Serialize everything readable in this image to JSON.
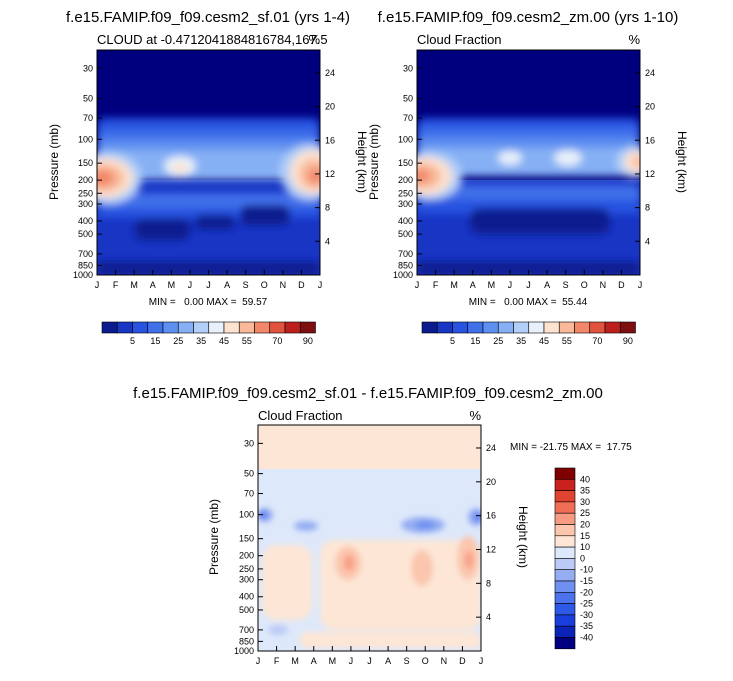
{
  "colors": {
    "background": "#ffffff",
    "deep_blue": "#00007f",
    "palette12": [
      "#0b1a8f",
      "#1835c4",
      "#2753e0",
      "#3f70ea",
      "#5f8ff0",
      "#86b0f4",
      "#b3cff7",
      "#e7f0fb",
      "#fde2cf",
      "#f9b899",
      "#f2876a",
      "#e2533f",
      "#bd1f1d",
      "#7f0e11"
    ],
    "diff_palette": [
      "#000080",
      "#0c23b8",
      "#1a3edc",
      "#2e58e6",
      "#4d73ec",
      "#6f90f0",
      "#94adf3",
      "#bccbf6",
      "#dde8fa",
      "#fde6d6",
      "#fbc6ad",
      "#f79c82",
      "#ef6f56",
      "#e0432f",
      "#c8211e",
      "#7f0000"
    ]
  },
  "chart_data": [
    {
      "type": "heatmap",
      "title": "f.e15.FAMIP.f09_f09.cesm2_sf.01 (yrs 1-4)",
      "left_label": "CLOUD at -0.4712041884816784,167.5",
      "right_label": "%",
      "ylabel": "Pressure (mb)",
      "ylabel2": "Height (km)",
      "months": [
        "J",
        "F",
        "M",
        "A",
        "M",
        "J",
        "J",
        "A",
        "S",
        "O",
        "N",
        "D",
        "J"
      ],
      "pressure_ticks": [
        "30",
        "50",
        "70",
        "100",
        "150",
        "200",
        "250",
        "300",
        "400",
        "500",
        "700",
        "850",
        "1000"
      ],
      "height_ticks": [
        "24",
        "20",
        "16",
        "12",
        "8",
        "4"
      ],
      "stats_text": "MIN =   0.00 MAX =  59.57",
      "colorbar": {
        "labels": [
          "5",
          "15",
          "25",
          "35",
          "45",
          "55",
          "70",
          "90"
        ]
      }
    },
    {
      "type": "heatmap",
      "title": "f.e15.FAMIP.f09_f09.cesm2_zm.00 (yrs 1-10)",
      "left_label": "Cloud Fraction",
      "right_label": "%",
      "ylabel": "Pressure (mb)",
      "ylabel2": "Height (km)",
      "months": [
        "J",
        "F",
        "M",
        "A",
        "M",
        "J",
        "J",
        "A",
        "S",
        "O",
        "N",
        "D",
        "J"
      ],
      "pressure_ticks": [
        "30",
        "50",
        "70",
        "100",
        "150",
        "200",
        "250",
        "300",
        "400",
        "500",
        "700",
        "850",
        "1000"
      ],
      "height_ticks": [
        "24",
        "20",
        "16",
        "12",
        "8",
        "4"
      ],
      "stats_text": "MIN =   0.00 MAX =  55.44",
      "colorbar": {
        "labels": [
          "5",
          "15",
          "25",
          "35",
          "45",
          "55",
          "70",
          "90"
        ]
      }
    },
    {
      "type": "heatmap",
      "title": "f.e15.FAMIP.f09_f09.cesm2_sf.01 - f.e15.FAMIP.f09_f09.cesm2_zm.00",
      "left_label": "Cloud Fraction",
      "right_label": "%",
      "ylabel": "Pressure (mb)",
      "ylabel2": "Height (km)",
      "months": [
        "J",
        "F",
        "M",
        "A",
        "M",
        "J",
        "J",
        "A",
        "S",
        "O",
        "N",
        "D",
        "J"
      ],
      "pressure_ticks": [
        "30",
        "50",
        "70",
        "100",
        "150",
        "200",
        "250",
        "300",
        "400",
        "500",
        "700",
        "850",
        "1000"
      ],
      "height_ticks": [
        "24",
        "20",
        "16",
        "12",
        "8",
        "4"
      ],
      "stats_text": "MIN = -21.75 MAX =  17.75",
      "colorbar": {
        "labels": [
          "40",
          "35",
          "30",
          "25",
          "20",
          "15",
          "10",
          "0",
          "-10",
          "-15",
          "-20",
          "-25",
          "-30",
          "-35",
          "-40"
        ]
      }
    }
  ]
}
